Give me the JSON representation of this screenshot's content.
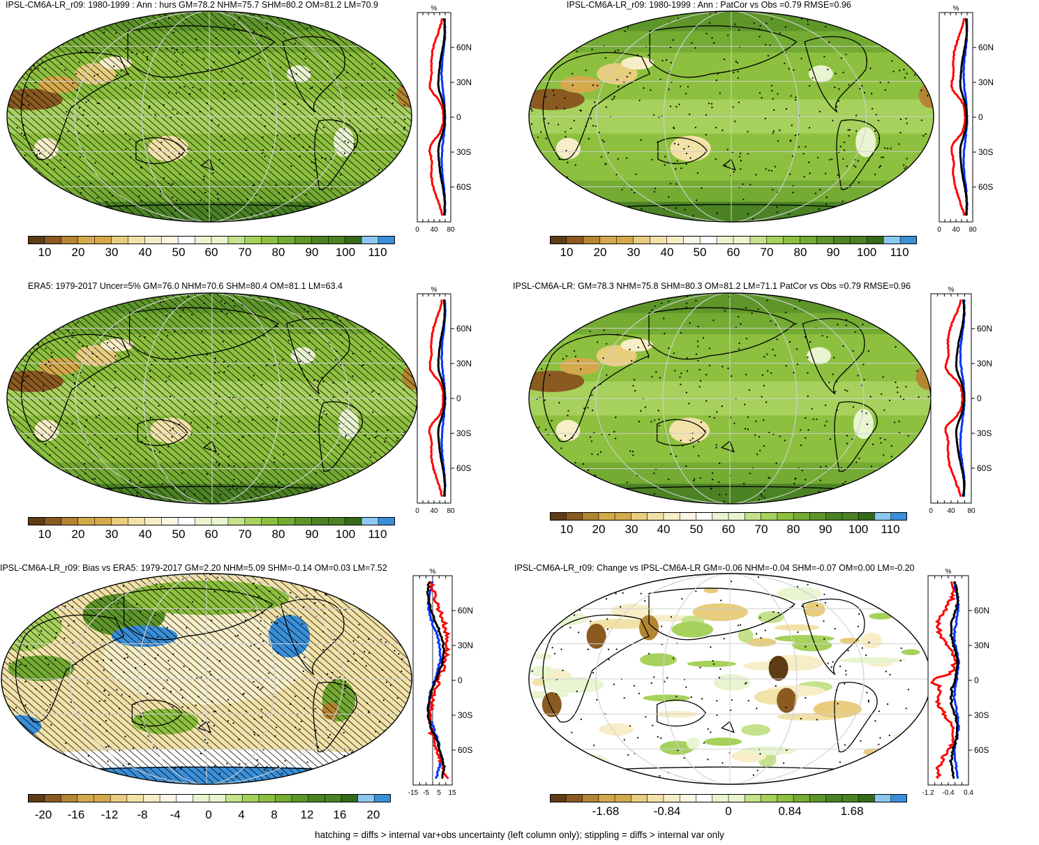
{
  "panels": [
    {
      "title": "IPSL-CM6A-LR_r09: 1980-1999 : Ann : hurs GM=78.2 NHM=75.7 SHM=80.2 OM=81.2 LM=70.9",
      "hatch": true,
      "stipple": true,
      "style": "mean"
    },
    {
      "title": "IPSL-CM6A-LR_r09: 1980-1999 : Ann : PatCor vs Obs =0.79 RMSE=0.96",
      "hatch": false,
      "stipple": true,
      "style": "mean"
    },
    {
      "title": "ERA5: 1979-2017 Uncer=5% GM=76.0 NHM=70.6 SHM=80.4 OM=81.1 LM=63.4",
      "hatch": true,
      "stipple": true,
      "style": "mean"
    },
    {
      "title": "IPSL-CM6A-LR: GM=78.3 NHM=75.8 SHM=80.3 OM=81.2 LM=71.1 PatCor vs Obs =0.79 RMSE=0.96",
      "hatch": false,
      "stipple": true,
      "style": "mean"
    },
    {
      "title": "IPSL-CM6A-LR_r09: Bias vs ERA5: 1979-2017 GM=2.20 NHM=5.09 SHM=-0.14 OM=0.03 LM=7.52",
      "hatch": true,
      "stipple": true,
      "style": "bias"
    },
    {
      "title": "IPSL-CM6A-LR_r09: Change vs IPSL-CM6A-LR GM=-0.06 NHM=-0.04 SHM=-0.07 OM=0.00 LM=-0.20",
      "hatch": false,
      "stipple": true,
      "style": "change"
    }
  ],
  "profile": {
    "unit": "%",
    "lat_labels": [
      "60N",
      "30N",
      "0",
      "30S",
      "60S"
    ],
    "mean_xticks": [
      "0",
      "40",
      "80"
    ],
    "bias_xticks": [
      "-15",
      "-5",
      "5",
      "15"
    ],
    "change_xticks": [
      "-1.2",
      "-0.4",
      "0.4"
    ]
  },
  "colorbars": {
    "mean_labels": [
      "10",
      "20",
      "30",
      "40",
      "50",
      "60",
      "70",
      "80",
      "90",
      "100",
      "110"
    ],
    "bias_labels": [
      "-20",
      "-16",
      "-12",
      "-8",
      "-4",
      "0",
      "4",
      "8",
      "12",
      "16",
      "20"
    ],
    "change_labels": [
      "-1.68",
      "-0.84",
      "0",
      "0.84",
      "1.68"
    ],
    "colors": [
      "#5e3c16",
      "#8a5a21",
      "#b48532",
      "#d4a94c",
      "#e8cd7e",
      "#f2e2a8",
      "#f7eec8",
      "#fbf7e4",
      "#ffffff",
      "#e9f4d0",
      "#c4e28a",
      "#a6d15c",
      "#8cc03e",
      "#74ab33",
      "#5e962a",
      "#4a8224",
      "#356a1b",
      "#8cc8f0",
      "#3a8fd8"
    ]
  },
  "footer": "hatching = diffs > internal var+obs uncertainty (left column only); stippling = diffs > internal var only"
}
